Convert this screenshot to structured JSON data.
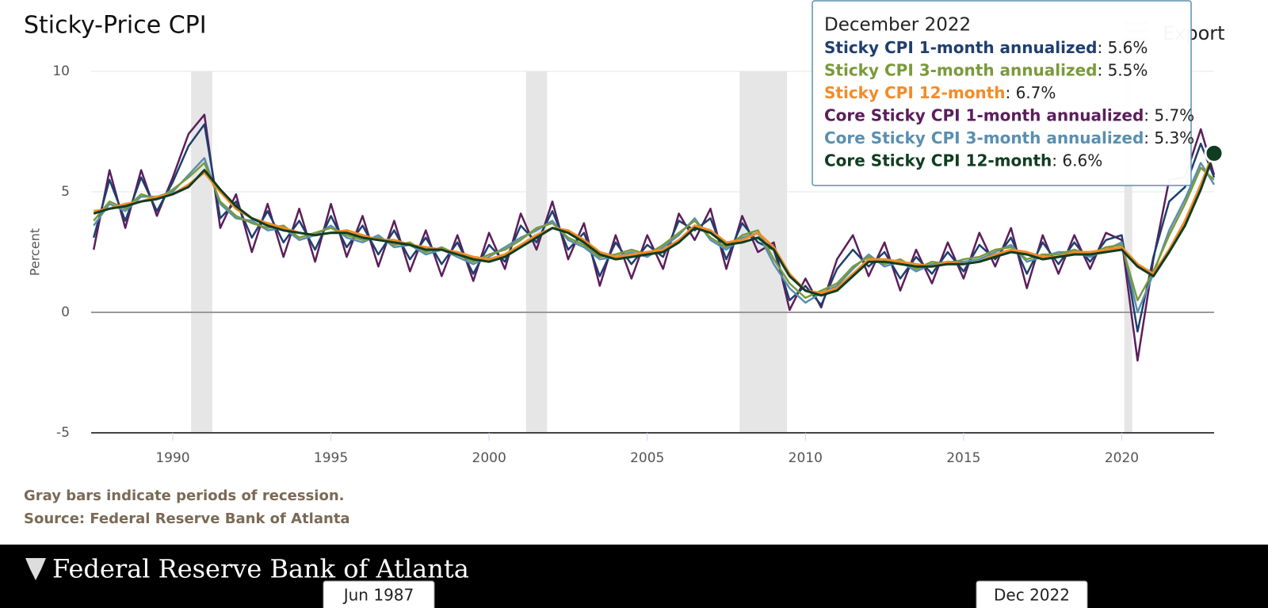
{
  "chart_data": {
    "type": "line",
    "title": "Sticky-Price CPI",
    "y_label": "Percent",
    "export_label": "Export",
    "xlim": [
      1987.42,
      2022.92
    ],
    "ylim": [
      -5,
      10
    ],
    "xticks": [
      1990,
      1995,
      2000,
      2005,
      2010,
      2015,
      2020
    ],
    "yticks": [
      -5,
      0,
      5,
      10
    ],
    "grid": true,
    "recessions": [
      [
        1990.58,
        1991.25
      ],
      [
        2001.17,
        2001.83
      ],
      [
        2007.92,
        2009.42
      ],
      [
        2020.08,
        2020.33
      ]
    ],
    "x": [
      1987.5,
      1988,
      1988.5,
      1989,
      1989.5,
      1990,
      1990.5,
      1991,
      1991.5,
      1992,
      1992.5,
      1993,
      1993.5,
      1994,
      1994.5,
      1995,
      1995.5,
      1996,
      1996.5,
      1997,
      1997.5,
      1998,
      1998.5,
      1999,
      1999.5,
      2000,
      2000.5,
      2001,
      2001.5,
      2002,
      2002.5,
      2003,
      2003.5,
      2004,
      2004.5,
      2005,
      2005.5,
      2006,
      2006.5,
      2007,
      2007.5,
      2008,
      2008.5,
      2009,
      2009.5,
      2010,
      2010.5,
      2011,
      2011.5,
      2012,
      2012.5,
      2013,
      2013.5,
      2014,
      2014.5,
      2015,
      2015.5,
      2016,
      2016.5,
      2017,
      2017.5,
      2018,
      2018.5,
      2019,
      2019.5,
      2020,
      2020.5,
      2021,
      2021.5,
      2022,
      2022.5,
      2022.92
    ],
    "series": [
      {
        "name": "Sticky CPI 1-month annualized",
        "color": "#1f3f6e",
        "values": [
          3.1,
          5.5,
          3.8,
          5.6,
          4.2,
          5.4,
          6.9,
          7.8,
          3.9,
          4.6,
          3.1,
          4.2,
          2.9,
          3.8,
          2.6,
          4.0,
          2.7,
          3.6,
          2.4,
          3.4,
          2.2,
          3.1,
          2.0,
          2.9,
          1.6,
          2.8,
          2.1,
          3.6,
          2.9,
          4.2,
          2.6,
          3.3,
          1.5,
          2.9,
          2.0,
          2.8,
          2.3,
          3.8,
          3.4,
          3.9,
          2.2,
          3.7,
          2.9,
          2.6,
          0.5,
          1.1,
          0.3,
          1.8,
          2.6,
          1.9,
          2.5,
          1.4,
          2.3,
          1.6,
          2.5,
          1.7,
          2.8,
          2.2,
          3.1,
          1.6,
          2.9,
          2.0,
          2.9,
          2.1,
          3.0,
          3.2,
          -0.8,
          2.3,
          4.6,
          5.2,
          7.0,
          5.6
        ]
      },
      {
        "name": "Sticky CPI 3-month annualized",
        "color": "#7a9a3a",
        "values": [
          3.8,
          4.6,
          4.3,
          4.9,
          4.7,
          5.1,
          5.6,
          6.2,
          4.6,
          4.0,
          3.7,
          3.5,
          3.6,
          3.1,
          3.3,
          3.5,
          3.2,
          3.0,
          3.1,
          2.8,
          2.9,
          2.5,
          2.7,
          2.4,
          2.1,
          2.4,
          2.6,
          3.0,
          3.5,
          3.7,
          3.1,
          2.8,
          2.3,
          2.4,
          2.6,
          2.4,
          2.8,
          3.3,
          3.8,
          3.1,
          2.7,
          3.2,
          3.4,
          2.2,
          1.2,
          0.6,
          0.9,
          1.2,
          1.9,
          2.3,
          2.0,
          2.2,
          1.8,
          2.1,
          2.0,
          2.2,
          2.3,
          2.6,
          2.7,
          2.2,
          2.4,
          2.4,
          2.6,
          2.4,
          2.7,
          2.8,
          0.5,
          1.7,
          3.2,
          4.5,
          6.0,
          5.5
        ]
      },
      {
        "name": "Sticky CPI 12-month",
        "color": "#f28c28",
        "values": [
          4.2,
          4.3,
          4.5,
          4.6,
          4.8,
          4.9,
          5.3,
          5.8,
          5.0,
          4.3,
          3.9,
          3.7,
          3.5,
          3.3,
          3.2,
          3.3,
          3.4,
          3.2,
          3.0,
          3.0,
          2.8,
          2.7,
          2.6,
          2.5,
          2.3,
          2.2,
          2.4,
          2.8,
          3.2,
          3.5,
          3.4,
          3.0,
          2.5,
          2.3,
          2.4,
          2.5,
          2.6,
          3.0,
          3.6,
          3.4,
          2.9,
          3.0,
          3.3,
          2.7,
          1.6,
          0.9,
          0.8,
          1.0,
          1.6,
          2.2,
          2.2,
          2.1,
          2.0,
          1.9,
          2.1,
          2.0,
          2.1,
          2.4,
          2.6,
          2.5,
          2.3,
          2.3,
          2.5,
          2.5,
          2.6,
          2.7,
          2.0,
          1.6,
          2.6,
          3.8,
          5.3,
          6.7
        ]
      },
      {
        "name": "Core Sticky CPI 1-month annualized",
        "color": "#5b1e5b",
        "values": [
          2.6,
          5.9,
          3.5,
          5.9,
          4.0,
          5.6,
          7.4,
          8.2,
          3.5,
          4.9,
          2.5,
          4.5,
          2.3,
          4.3,
          2.1,
          4.5,
          2.3,
          4.0,
          1.9,
          3.8,
          1.7,
          3.4,
          1.5,
          3.2,
          1.3,
          3.3,
          1.8,
          4.1,
          2.6,
          4.6,
          2.2,
          3.7,
          1.1,
          3.2,
          1.4,
          3.2,
          1.8,
          4.1,
          3.0,
          4.3,
          1.8,
          4.0,
          2.5,
          2.9,
          0.1,
          1.4,
          0.2,
          2.2,
          3.2,
          1.5,
          2.9,
          0.9,
          2.6,
          1.2,
          2.9,
          1.4,
          3.3,
          1.9,
          3.5,
          1.0,
          3.2,
          1.6,
          3.2,
          1.8,
          3.3,
          3.0,
          -2.0,
          2.2,
          5.5,
          5.6,
          7.6,
          5.7
        ]
      },
      {
        "name": "Core Sticky CPI 3-month annualized",
        "color": "#5a8fb0",
        "values": [
          3.6,
          4.5,
          4.2,
          4.8,
          4.8,
          5.0,
          5.7,
          6.4,
          4.5,
          3.9,
          3.8,
          3.4,
          3.5,
          3.0,
          3.2,
          3.6,
          3.1,
          2.9,
          3.2,
          2.7,
          2.8,
          2.4,
          2.6,
          2.3,
          2.0,
          2.3,
          2.7,
          3.1,
          3.4,
          3.8,
          3.0,
          2.7,
          2.2,
          2.3,
          2.5,
          2.3,
          2.7,
          3.2,
          3.9,
          3.0,
          2.6,
          3.1,
          3.3,
          2.0,
          1.0,
          0.4,
          0.8,
          1.1,
          1.8,
          2.4,
          1.9,
          2.1,
          1.7,
          2.0,
          2.1,
          2.1,
          2.2,
          2.5,
          2.8,
          2.1,
          2.3,
          2.5,
          2.5,
          2.3,
          2.6,
          2.9,
          0.0,
          1.6,
          3.4,
          4.7,
          6.2,
          5.3
        ]
      },
      {
        "name": "Core Sticky CPI 12-month",
        "color": "#0f3d20",
        "values": [
          4.1,
          4.3,
          4.4,
          4.6,
          4.7,
          4.9,
          5.2,
          5.9,
          5.1,
          4.4,
          3.9,
          3.6,
          3.4,
          3.3,
          3.2,
          3.3,
          3.3,
          3.1,
          3.0,
          2.9,
          2.8,
          2.6,
          2.6,
          2.4,
          2.2,
          2.1,
          2.3,
          2.7,
          3.1,
          3.5,
          3.3,
          2.9,
          2.4,
          2.2,
          2.3,
          2.4,
          2.5,
          2.9,
          3.5,
          3.3,
          2.8,
          2.9,
          3.1,
          2.6,
          1.5,
          0.9,
          0.7,
          0.9,
          1.5,
          2.1,
          2.1,
          2.0,
          1.9,
          1.9,
          2.0,
          2.0,
          2.1,
          2.3,
          2.5,
          2.4,
          2.2,
          2.3,
          2.4,
          2.4,
          2.5,
          2.6,
          1.9,
          1.5,
          2.5,
          3.6,
          5.1,
          6.6
        ]
      }
    ],
    "tooltip": {
      "title": "December 2022",
      "values": [
        "5.6%",
        "5.5%",
        "6.7%",
        "5.7%",
        "5.3%",
        "6.6%"
      ]
    },
    "notes": [
      "Gray bars indicate periods of recession.",
      "Source: Federal Reserve Bank of Atlanta"
    ],
    "footer_logo": "Federal Reserve Bank of Atlanta",
    "navigator_labels": [
      "Jun 1987",
      "Dec 2022"
    ]
  }
}
